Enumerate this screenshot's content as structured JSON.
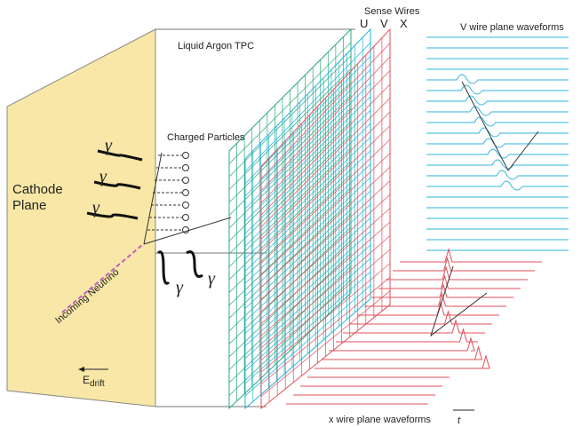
{
  "tpc_label": "Liquid Argon TPC",
  "sense_wires": {
    "title": "Sense Wires",
    "planes": [
      "U",
      "V",
      "X"
    ]
  },
  "v_waveforms_label": "V wire plane waveforms",
  "x_waveforms_label": "x wire plane waveforms",
  "charged_particles_label": "Charged Particles",
  "cathode_label": [
    "Cathode",
    "Plane"
  ],
  "photons": [
    "γ",
    "γ",
    "γ",
    "γ",
    "γ"
  ],
  "neutrino_label": "Incoming Neutrino",
  "drift_label": {
    "main": "E",
    "sub": "drift"
  },
  "time_label": "t"
}
